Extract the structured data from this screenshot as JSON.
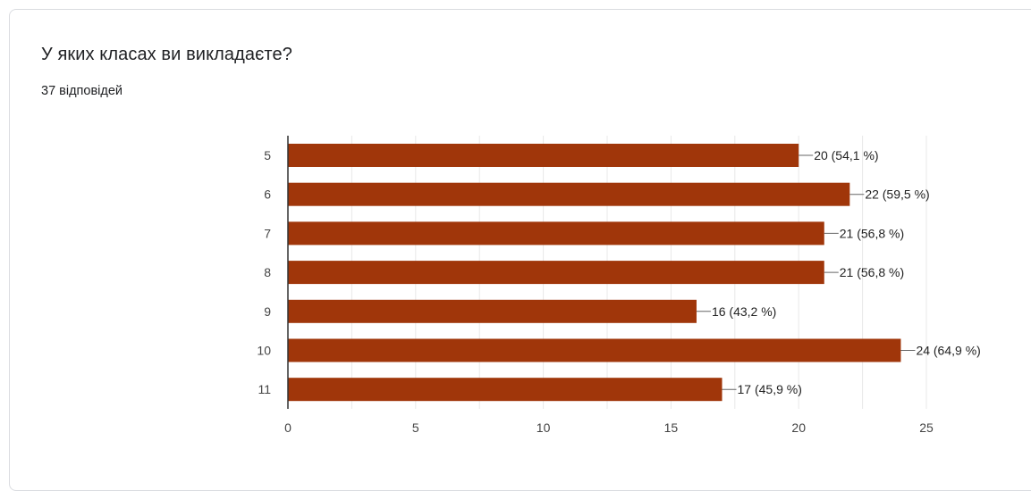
{
  "question": {
    "title": "У яких класах ви викладаєте?",
    "response_count": "37",
    "response_label": "відповідей"
  },
  "colors": {
    "bar": "#a0360a",
    "axis": "#333333",
    "grid": "#e8e8e8",
    "text": "#222222",
    "tick_text": "#444444"
  },
  "chart_data": {
    "type": "bar",
    "orientation": "horizontal",
    "categories": [
      "5",
      "6",
      "7",
      "8",
      "9",
      "10",
      "11"
    ],
    "values": [
      20,
      22,
      21,
      21,
      16,
      24,
      17
    ],
    "data_labels": [
      "20 (54,1 %)",
      "22 (59,5 %)",
      "21 (56,8 %)",
      "21 (56,8 %)",
      "16 (43,2 %)",
      "24 (64,9 %)",
      "17 (45,9 %)"
    ],
    "xlim": [
      0,
      25
    ],
    "xticks": [
      0,
      5,
      10,
      15,
      20,
      25
    ],
    "grid": true,
    "legend": "none"
  }
}
